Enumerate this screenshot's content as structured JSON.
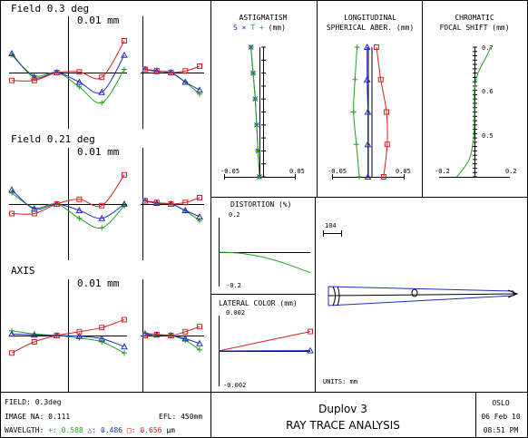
{
  "colors": {
    "blue": "#1f2fbf",
    "green": "#23a023",
    "red": "#d42020",
    "line": "#000000"
  },
  "fan": {
    "rows": [
      {
        "title": "Field 0.3 deg",
        "scale": "0.01 mm",
        "tan": {
          "blue": [
            0.6,
            -0.15,
            0.0,
            -0.3,
            -0.62,
            0.55
          ],
          "green": [
            0.55,
            -0.1,
            0.0,
            -0.45,
            -0.95,
            0.1
          ],
          "red": [
            -0.25,
            -0.25,
            0.0,
            0.02,
            -0.15,
            1.0
          ]
        },
        "sag": {
          "blue": [
            0.1,
            0.04,
            0.0,
            -0.3,
            -0.55
          ],
          "green": [
            0.1,
            0.03,
            0.0,
            -0.3,
            -0.68
          ],
          "red": [
            0.1,
            0.06,
            0.0,
            0.05,
            0.2
          ]
        }
      },
      {
        "title": "Field 0.21 deg",
        "scale": "0.01 mm",
        "tan": {
          "blue": [
            0.45,
            -0.15,
            0.0,
            -0.2,
            -0.45,
            0.0
          ],
          "green": [
            0.35,
            -0.12,
            0.0,
            -0.45,
            -0.75,
            -0.05
          ],
          "red": [
            -0.3,
            -0.3,
            0.0,
            0.15,
            -0.05,
            0.92
          ]
        },
        "sag": {
          "blue": [
            0.1,
            0.03,
            0.0,
            -0.2,
            -0.4
          ],
          "green": [
            0.1,
            0.02,
            0.0,
            -0.22,
            -0.52
          ],
          "red": [
            0.1,
            0.05,
            0.0,
            0.05,
            0.2
          ]
        }
      },
      {
        "title": "AXIS",
        "scale": "0.01 mm",
        "tan": {
          "blue": [
            0.05,
            0.02,
            0.0,
            -0.02,
            -0.1,
            -0.35
          ],
          "green": [
            0.15,
            0.05,
            0.0,
            -0.08,
            -0.2,
            -0.55
          ],
          "red": [
            -0.55,
            -0.2,
            0.0,
            0.12,
            0.25,
            0.5
          ]
        },
        "sag": {
          "blue": [
            0.05,
            0.02,
            0.0,
            -0.1,
            -0.25
          ],
          "green": [
            0.08,
            0.03,
            0.0,
            -0.15,
            -0.45
          ],
          "red": [
            0.0,
            0.03,
            0.0,
            0.12,
            0.28
          ]
        }
      }
    ]
  },
  "chart_data": [
    {
      "type": "line",
      "title": "ASTIGMATISM",
      "legend": [
        "S",
        "×",
        "T",
        "+",
        "(mm)"
      ],
      "xlim": [
        -0.05,
        0.05
      ],
      "xticks": [
        "-0.05",
        "0.05"
      ],
      "series": [
        {
          "name": "S",
          "color": "#1f2fbf",
          "x": [
            -0.012,
            -0.009,
            -0.006,
            -0.004,
            -0.002,
            0.0
          ],
          "y": [
            1.0,
            0.8,
            0.6,
            0.4,
            0.2,
            0.0
          ]
        },
        {
          "name": "T",
          "color": "#23a023",
          "x": [
            -0.012,
            -0.009,
            -0.006,
            -0.004,
            -0.002,
            0.0
          ],
          "y": [
            1.0,
            0.8,
            0.6,
            0.4,
            0.2,
            0.0
          ]
        }
      ]
    },
    {
      "type": "line",
      "title": "LONGITUDINAL",
      "subtitle": "SPHERICAL ABER. (mm)",
      "xlim": [
        -0.05,
        0.05
      ],
      "xticks": [
        "-0.05",
        "0.05"
      ],
      "series": [
        {
          "name": "0.486",
          "color": "#1f2fbf",
          "x": [
            -0.001,
            -0.001,
            0.0,
            0.0,
            0.0
          ],
          "y": [
            1.0,
            0.75,
            0.5,
            0.25,
            0.0
          ]
        },
        {
          "name": "0.588",
          "color": "#23a023",
          "x": [
            -0.015,
            -0.018,
            -0.02,
            -0.016,
            -0.012
          ],
          "y": [
            1.0,
            0.75,
            0.5,
            0.25,
            0.0
          ]
        },
        {
          "name": "0.656",
          "color": "#d42020",
          "x": [
            0.012,
            0.018,
            0.026,
            0.027,
            0.022
          ],
          "y": [
            1.0,
            0.75,
            0.5,
            0.25,
            0.0
          ]
        }
      ]
    },
    {
      "type": "line",
      "title": "CHROMATIC",
      "subtitle": "FOCAL SHIFT (mm)",
      "xlim": [
        -0.2,
        0.2
      ],
      "xticks": [
        "-0.2",
        "0.2"
      ],
      "yticks": [
        "0.7",
        "0.6",
        "0.5"
      ],
      "series": [
        {
          "name": "focal shift",
          "color": "#23a023",
          "x": [
            -0.1,
            -0.03,
            -0.005,
            0.0,
            0.0,
            0.02,
            0.07,
            0.09
          ],
          "y": [
            0.4,
            0.44,
            0.49,
            0.54,
            0.6,
            0.64,
            0.68,
            0.7
          ]
        }
      ]
    },
    {
      "type": "line",
      "title": "DISTORTION (%)",
      "ylim": [
        -0.2,
        0.2
      ],
      "yticks": [
        "0.2",
        "-0.2"
      ],
      "series": [
        {
          "name": "distortion",
          "color": "#23a023",
          "x": [
            0,
            0.2,
            0.4,
            0.6,
            0.8,
            1.0
          ],
          "y": [
            0.0,
            -0.005,
            -0.02,
            -0.045,
            -0.08,
            -0.12
          ]
        }
      ]
    },
    {
      "type": "line",
      "title": "LATERAL COLOR (mm)",
      "ylim": [
        -0.002,
        0.002
      ],
      "yticks": [
        "0.002",
        "-0.002"
      ],
      "series": [
        {
          "name": "red",
          "color": "#d42020",
          "x": [
            0,
            1
          ],
          "y": [
            0.0,
            0.0011
          ]
        },
        {
          "name": "blue",
          "color": "#1f2fbf",
          "x": [
            0,
            1
          ],
          "y": [
            0.0,
            2e-05
          ]
        }
      ]
    }
  ],
  "layout_panel": {
    "scale_label": "104",
    "units": "UNITS: mm"
  },
  "footer": {
    "field": "FIELD: 0.3deg",
    "na": "IMAGE NA: 0.111",
    "efl": "EFL: 450mm",
    "wavelength_label": "WAVELGTH:",
    "wl1": "+: 0.588",
    "wl2": "△: 0.486",
    "wl3": "□: 0.656",
    "wl_unit": "μm",
    "lens_name": "Duplov 3",
    "analysis": "RAY TRACE ANALYSIS",
    "program": "OSLO",
    "date": "06 Feb 10",
    "time": "08:51 PM"
  }
}
